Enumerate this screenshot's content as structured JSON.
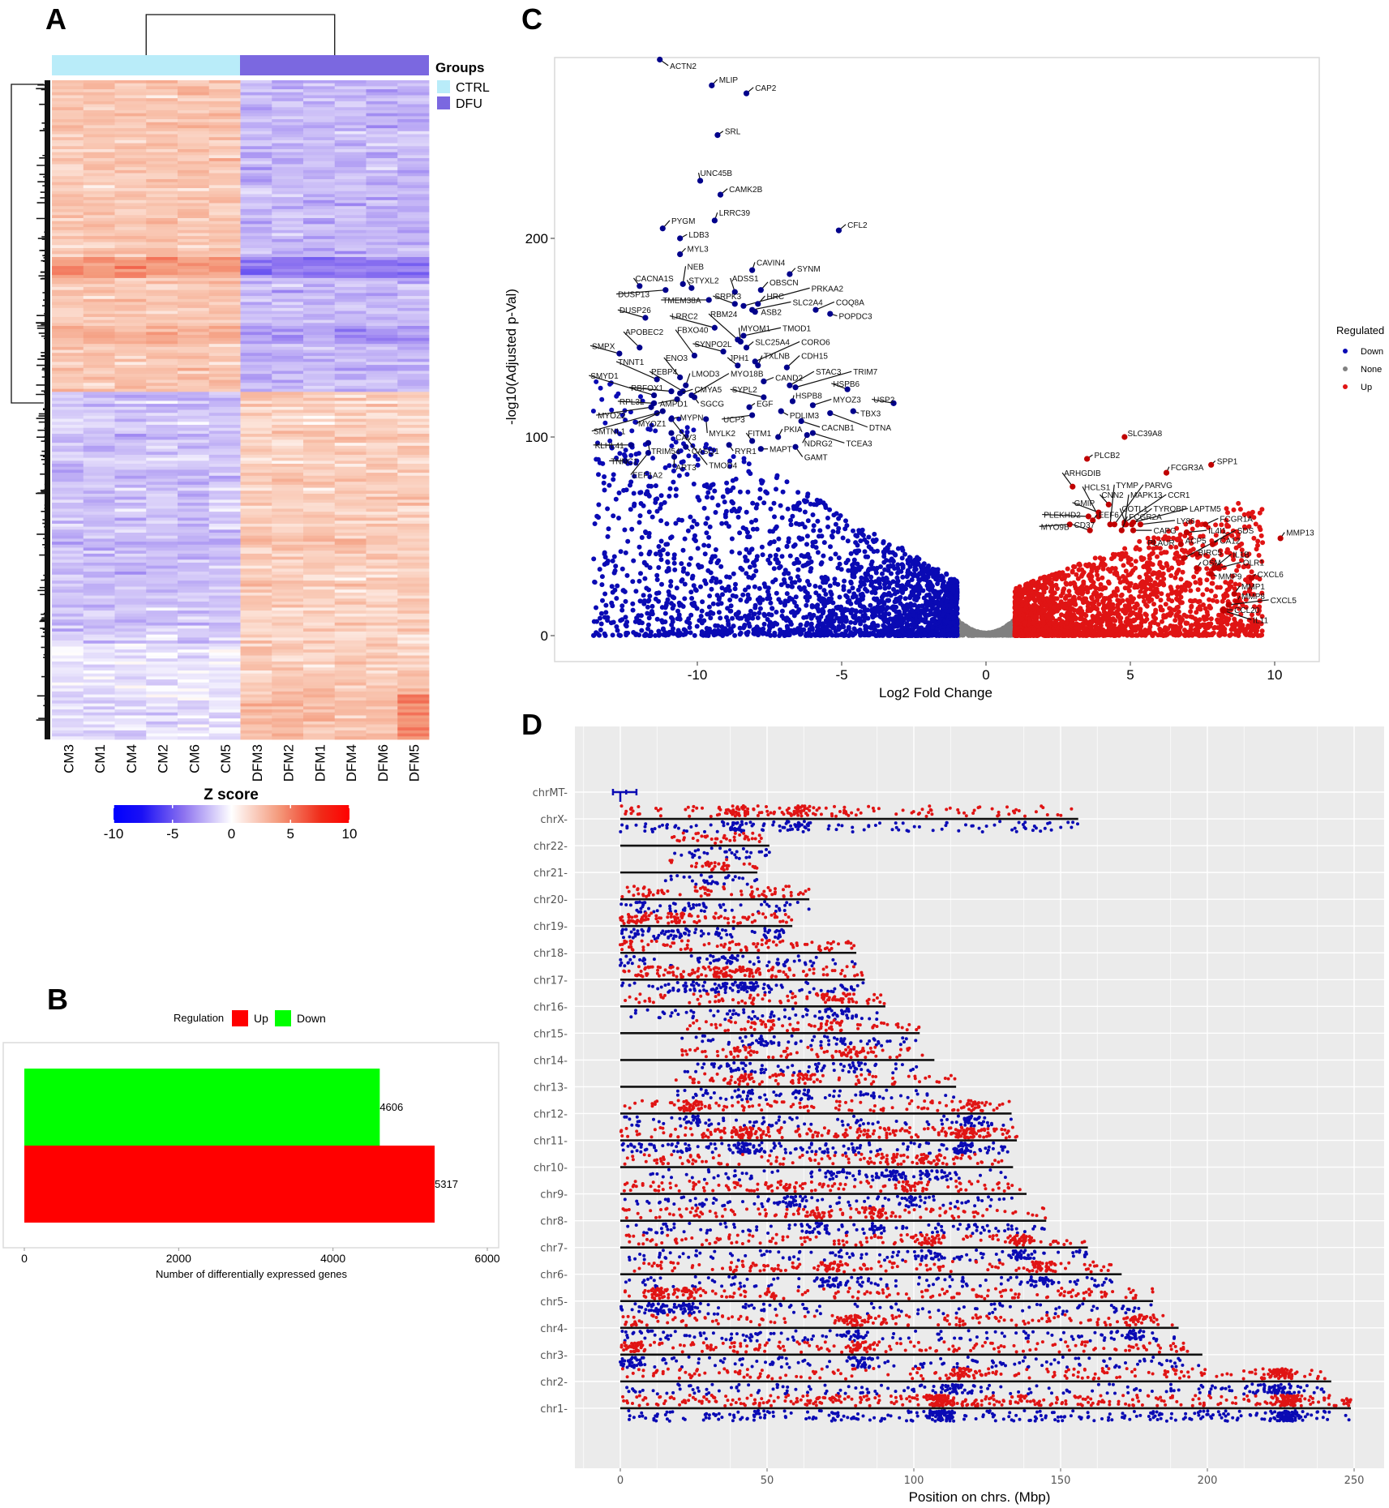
{
  "figure_labels": {
    "a": "A",
    "b": "B",
    "c": "C",
    "d": "D"
  },
  "chart_data": [
    {
      "panel": "A",
      "type": "heatmap",
      "samples": [
        "CM3",
        "CM1",
        "CM4",
        "CM2",
        "CM6",
        "CM5",
        "DFM3",
        "DFM2",
        "DFM1",
        "DFM4",
        "DFM6",
        "DFM5"
      ],
      "groups_title": "Groups",
      "groups": [
        {
          "name": "CTRL",
          "color": "#b9ecf9",
          "samples": [
            "CM3",
            "CM1",
            "CM4",
            "CM2",
            "CM6",
            "CM5"
          ]
        },
        {
          "name": "DFU",
          "color": "#7b68e0",
          "samples": [
            "DFM3",
            "DFM2",
            "DFM1",
            "DFM4",
            "DFM6",
            "DFM5"
          ]
        }
      ],
      "colorbar": {
        "title": "Z score",
        "range": [
          -10,
          10
        ],
        "ticks": [
          "-10",
          "-5",
          "0",
          "5",
          "10"
        ],
        "low_color": "#0000ff",
        "mid_color": "#ffffff",
        "high_color": "#ff0000"
      },
      "row_clusters": [
        {
          "pattern": "higher in CTRL, lower in DFU",
          "fraction": 0.47
        },
        {
          "pattern": "lower in CTRL, higher in DFU",
          "fraction": 0.53
        }
      ]
    },
    {
      "panel": "B",
      "type": "bar",
      "orientation": "horizontal",
      "legend_title": "Regulation",
      "categories": [
        "Up",
        "Down"
      ],
      "colors": {
        "Up": "#ff0000",
        "Down": "#00ff00"
      },
      "values": [
        5317,
        4606
      ],
      "value_labels": [
        "5317",
        "4606"
      ],
      "xlabel": "Number of differentially expressed genes",
      "xlim": [
        0,
        6000
      ],
      "xticks": [
        "0",
        "2000",
        "4000",
        "6000"
      ],
      "legend": "top"
    },
    {
      "panel": "C",
      "type": "scatter",
      "title": "",
      "xlabel": "Log2 Fold Change",
      "ylabel": "-log10(Adjusted p-Val)",
      "xlim": [
        -14.9,
        11.5
      ],
      "ylim": [
        -13,
        291
      ],
      "xticks": [
        "-10",
        "-5",
        "0",
        "5",
        "10"
      ],
      "yticks": [
        "0",
        "100",
        "200"
      ],
      "legend_title": "Regulated",
      "legend": [
        {
          "label": "Down",
          "color": "#0a0ab4"
        },
        {
          "label": "None",
          "color": "#808080"
        },
        {
          "label": "Up",
          "color": "#e01414"
        }
      ],
      "legend_position": "right",
      "labeled_genes_fields": [
        "gene",
        "log2fc",
        "neglog10p",
        "label_x",
        "label_y"
      ],
      "labeled_genes": [
        [
          "ACTN2",
          -11.3,
          290,
          -10.95,
          287
        ],
        [
          "MLIP",
          -9.5,
          277,
          -9.25,
          280
        ],
        [
          "CAP2",
          -8.3,
          273,
          -8.0,
          276
        ],
        [
          "SRL",
          -9.3,
          252,
          -9.05,
          254
        ],
        [
          "UNC45B",
          -9.9,
          229,
          -9.9,
          233
        ],
        [
          "CAMK2B",
          -9.2,
          222,
          -8.9,
          225
        ],
        [
          "LRRC39",
          -9.4,
          209,
          -9.25,
          213
        ],
        [
          "PYGM",
          -11.2,
          205,
          -10.9,
          209
        ],
        [
          "CFL2",
          -5.1,
          204,
          -4.8,
          207
        ],
        [
          "LDB3",
          -10.6,
          200,
          -10.3,
          202
        ],
        [
          "MYL3",
          -10.6,
          192,
          -10.35,
          195
        ],
        [
          "CAVIN4",
          -8.1,
          184,
          -7.95,
          188
        ],
        [
          "SYNM",
          -6.8,
          182,
          -6.55,
          185
        ],
        [
          "NEB",
          -10.5,
          177,
          -10.35,
          186
        ],
        [
          "CACNA1S",
          -12.0,
          176,
          -12.15,
          180
        ],
        [
          "STYXL2",
          -10.2,
          175,
          -10.3,
          179
        ],
        [
          "ADSS1",
          -8.7,
          173,
          -8.8,
          180
        ],
        [
          "OBSCN",
          -7.8,
          174,
          -7.5,
          178
        ],
        [
          "PRKAA2",
          -8.4,
          166,
          -6.05,
          175
        ],
        [
          "DUSP13",
          -11.1,
          174,
          -12.75,
          172
        ],
        [
          "TMEM38A",
          -9.6,
          169,
          -11.2,
          169
        ],
        [
          "SRPK3",
          -8.7,
          167,
          -9.4,
          171
        ],
        [
          "HRC",
          -7.9,
          167,
          -7.6,
          171
        ],
        [
          "SLC2A4",
          -8.1,
          164,
          -6.7,
          168
        ],
        [
          "COQ8A",
          -5.9,
          164,
          -5.2,
          168
        ],
        [
          "ASB2",
          -8.0,
          163,
          -7.8,
          163
        ],
        [
          "POPDC3",
          -5.4,
          162,
          -5.1,
          161
        ],
        [
          "DUSP26",
          -11.8,
          160,
          -12.7,
          164
        ],
        [
          "LRRC2",
          -9.4,
          155,
          -10.9,
          161
        ],
        [
          "RBM24",
          -8.6,
          149,
          -9.55,
          162
        ],
        [
          "APOBEC2",
          -12.0,
          145,
          -12.5,
          153
        ],
        [
          "SMPX",
          -12.7,
          142,
          -13.65,
          146
        ],
        [
          "FBXO40",
          -10.1,
          141,
          -10.7,
          154
        ],
        [
          "SYNPO2L",
          -9.1,
          143,
          -10.1,
          147
        ],
        [
          "MYOM1",
          -8.5,
          148,
          -8.5,
          155
        ],
        [
          "TMOD1",
          -8.4,
          151,
          -7.05,
          155
        ],
        [
          "SLC25A4",
          -8.3,
          145,
          -8.0,
          148
        ],
        [
          "CORO6",
          -8.0,
          138,
          -6.4,
          148
        ],
        [
          "TXLNB",
          -7.9,
          136,
          -7.7,
          141
        ],
        [
          "JPH1",
          -8.6,
          136,
          -8.9,
          140
        ],
        [
          "CDH15",
          -6.9,
          135,
          -6.4,
          141
        ],
        [
          "ENO3",
          -10.6,
          130,
          -11.1,
          140
        ],
        [
          "TNNT1",
          -11.4,
          129,
          -12.75,
          138
        ],
        [
          "PEBP4",
          -10.5,
          123,
          -11.6,
          133
        ],
        [
          "LMOD3",
          -10.4,
          126,
          -10.2,
          132
        ],
        [
          "MYO18B",
          -10.2,
          121,
          -8.85,
          132
        ],
        [
          "CAND2",
          -7.7,
          128,
          -7.3,
          130
        ],
        [
          "STAC3",
          -6.8,
          126,
          -5.9,
          133
        ],
        [
          "TRIM7",
          -6.6,
          125,
          -4.6,
          133
        ],
        [
          "SMYD1",
          -11.5,
          121,
          -13.7,
          131
        ],
        [
          "RBFOX1",
          -10.9,
          123,
          -12.3,
          125
        ],
        [
          "CMYA5",
          -10.6,
          122,
          -10.1,
          124
        ],
        [
          "SYPL2",
          -7.7,
          120,
          -8.8,
          124
        ],
        [
          "HSPB6",
          -4.8,
          124,
          -5.3,
          127
        ],
        [
          "HSPB8",
          -6.7,
          118,
          -6.6,
          121
        ],
        [
          "MYOZ3",
          -6.0,
          116,
          -5.3,
          119
        ],
        [
          "USP2",
          -3.2,
          117,
          -3.9,
          119
        ],
        [
          "RPL3L",
          -11.5,
          117,
          -12.7,
          118
        ],
        [
          "AMPD1",
          -10.7,
          119,
          -11.3,
          117
        ],
        [
          "SGCG",
          -10.1,
          120,
          -9.9,
          117
        ],
        [
          "EGF",
          -8.2,
          115,
          -7.95,
          117
        ],
        [
          "PDLIM3",
          -7.1,
          113,
          -6.8,
          111
        ],
        [
          "TBX3",
          -4.6,
          113,
          -4.35,
          112
        ],
        [
          "MYOZ2",
          -11.6,
          115,
          -13.45,
          111
        ],
        [
          "MYPN",
          -10.9,
          109,
          -10.6,
          110
        ],
        [
          "UCP3",
          -8.1,
          111,
          -9.1,
          109
        ],
        [
          "CACNB1",
          -6.4,
          108,
          -5.7,
          105
        ],
        [
          "DTNA",
          -5.4,
          112,
          -4.05,
          105
        ],
        [
          "SMTNL1",
          -11.4,
          112,
          -13.6,
          103
        ],
        [
          "MYOZ1",
          -11.2,
          113,
          -12.05,
          107
        ],
        [
          "MYLK2",
          -9.7,
          109,
          -9.6,
          102
        ],
        [
          "FITM1",
          -8.1,
          98,
          -8.25,
          102
        ],
        [
          "PKIA",
          -7.2,
          100,
          -7.0,
          104
        ],
        [
          "CAV3",
          -10.9,
          102,
          -10.75,
          100
        ],
        [
          "NDRG2",
          -6.2,
          101,
          -6.3,
          97
        ],
        [
          "TCEA3",
          -6.0,
          102,
          -4.85,
          97
        ],
        [
          "KLHL41",
          -12.3,
          96,
          -13.55,
          96
        ],
        [
          "TRIM54",
          -11.7,
          97,
          -11.6,
          93
        ],
        [
          "CASQ1",
          -10.4,
          95,
          -10.2,
          93
        ],
        [
          "RYR1",
          -8.9,
          96,
          -8.7,
          93
        ],
        [
          "MAPT",
          -7.8,
          94,
          -7.5,
          94
        ],
        [
          "TNNC1",
          -12.5,
          88,
          -13.0,
          88
        ],
        [
          "GAMT",
          -6.6,
          95,
          -6.3,
          90
        ],
        [
          "ART3",
          -10.8,
          90,
          -10.75,
          85
        ],
        [
          "TMOD4",
          -10.9,
          109,
          -9.6,
          86
        ],
        [
          "EEF1A2",
          -11.7,
          92,
          -12.25,
          81
        ],
        [
          "SLC39A8",
          4.8,
          100,
          4.9,
          102
        ],
        [
          "PLCB2",
          3.5,
          89,
          3.75,
          91
        ],
        [
          "SPP1",
          7.8,
          86,
          8.0,
          88
        ],
        [
          "FCGR3A",
          6.25,
          82,
          6.4,
          85
        ],
        [
          "ARHGDIB",
          3.0,
          75,
          2.7,
          82
        ],
        [
          "HCLS1",
          3.9,
          60,
          3.4,
          75
        ],
        [
          "TYMP",
          4.3,
          56,
          4.5,
          76
        ],
        [
          "PARVG",
          4.45,
          56,
          5.5,
          76
        ],
        [
          "CNN2",
          4.25,
          66,
          4.0,
          71
        ],
        [
          "MAPK13",
          4.8,
          56,
          5.0,
          71
        ],
        [
          "CCR1",
          4.8,
          57,
          6.3,
          71
        ],
        [
          "GMIP",
          3.9,
          62,
          3.05,
          67
        ],
        [
          "COTL1",
          4.85,
          56,
          4.7,
          64
        ],
        [
          "TYROBP",
          5.05,
          56,
          5.8,
          64
        ],
        [
          "LAPTM5",
          5.1,
          57,
          7.05,
          64
        ],
        [
          "PLEKHD2",
          3.55,
          60,
          2.0,
          61
        ],
        [
          "EEF6",
          3.7,
          58,
          3.9,
          61
        ],
        [
          "FCGR2A",
          4.7,
          53,
          4.95,
          60
        ],
        [
          "LY86",
          5.35,
          56,
          6.6,
          58
        ],
        [
          "FCGR1A",
          7.6,
          56,
          8.1,
          59
        ],
        [
          "MYO9B",
          2.9,
          56,
          1.9,
          55
        ],
        [
          "CD37",
          3.6,
          53,
          3.05,
          56
        ],
        [
          "CAPG",
          5.1,
          53,
          5.8,
          53
        ],
        [
          "IL4I1",
          6.95,
          52,
          7.7,
          53
        ],
        [
          "SDS",
          6.85,
          39,
          8.7,
          53
        ],
        [
          "MMP13",
          10.2,
          49,
          10.4,
          52
        ],
        [
          "PLAUR",
          5.8,
          47,
          5.6,
          47
        ],
        [
          "ACP5",
          6.75,
          46,
          6.9,
          48
        ],
        [
          "CA12",
          7.85,
          46,
          8.1,
          48
        ],
        [
          "BIRC5",
          7.3,
          41,
          7.35,
          42
        ],
        [
          "IL1B",
          7.9,
          34,
          8.55,
          41
        ],
        [
          "OSM",
          7.3,
          34,
          7.5,
          37
        ],
        [
          "OLR1",
          8.05,
          34,
          8.9,
          37
        ],
        [
          "MMP9",
          7.8,
          31,
          8.05,
          30
        ],
        [
          "CXCL6",
          9.2,
          29,
          9.4,
          31
        ],
        [
          "MMP1",
          8.6,
          21,
          8.85,
          25
        ],
        [
          "MMP8",
          8.7,
          17,
          8.85,
          20
        ],
        [
          "CXCL5",
          8.4,
          15.5,
          9.85,
          18
        ],
        [
          "CCL20",
          8.2,
          13,
          8.6,
          13
        ],
        [
          "IL11",
          8.25,
          12.5,
          9.25,
          8
        ]
      ]
    },
    {
      "panel": "D",
      "type": "scatter",
      "xlabel": "Position on chrs. (Mbp)",
      "ylabel": "",
      "xlim": [
        -15.5,
        260
      ],
      "xticks": [
        "0",
        "50",
        "100",
        "150",
        "200",
        "250"
      ],
      "series_colors": {
        "Up": "#e01414",
        "Down": "#0a0ab4"
      },
      "chromosomes": [
        {
          "name": "chrMT",
          "length": 0.017
        },
        {
          "name": "chrX",
          "length": 156.0
        },
        {
          "name": "chr22",
          "length": 50.8
        },
        {
          "name": "chr21",
          "length": 46.7
        },
        {
          "name": "chr20",
          "length": 64.4
        },
        {
          "name": "chr19",
          "length": 58.6
        },
        {
          "name": "chr18",
          "length": 80.4
        },
        {
          "name": "chr17",
          "length": 83.3
        },
        {
          "name": "chr16",
          "length": 90.3
        },
        {
          "name": "chr15",
          "length": 102.0
        },
        {
          "name": "chr14",
          "length": 107.0
        },
        {
          "name": "chr13",
          "length": 114.4
        },
        {
          "name": "chr12",
          "length": 133.3
        },
        {
          "name": "chr11",
          "length": 135.1
        },
        {
          "name": "chr10",
          "length": 133.8
        },
        {
          "name": "chr9",
          "length": 138.4
        },
        {
          "name": "chr8",
          "length": 145.1
        },
        {
          "name": "chr7",
          "length": 159.3
        },
        {
          "name": "chr6",
          "length": 170.8
        },
        {
          "name": "chr5",
          "length": 181.5
        },
        {
          "name": "chr4",
          "length": 190.2
        },
        {
          "name": "chr3",
          "length": 198.3
        },
        {
          "name": "chr2",
          "length": 242.2
        },
        {
          "name": "chr1",
          "length": 248.9
        }
      ]
    }
  ]
}
